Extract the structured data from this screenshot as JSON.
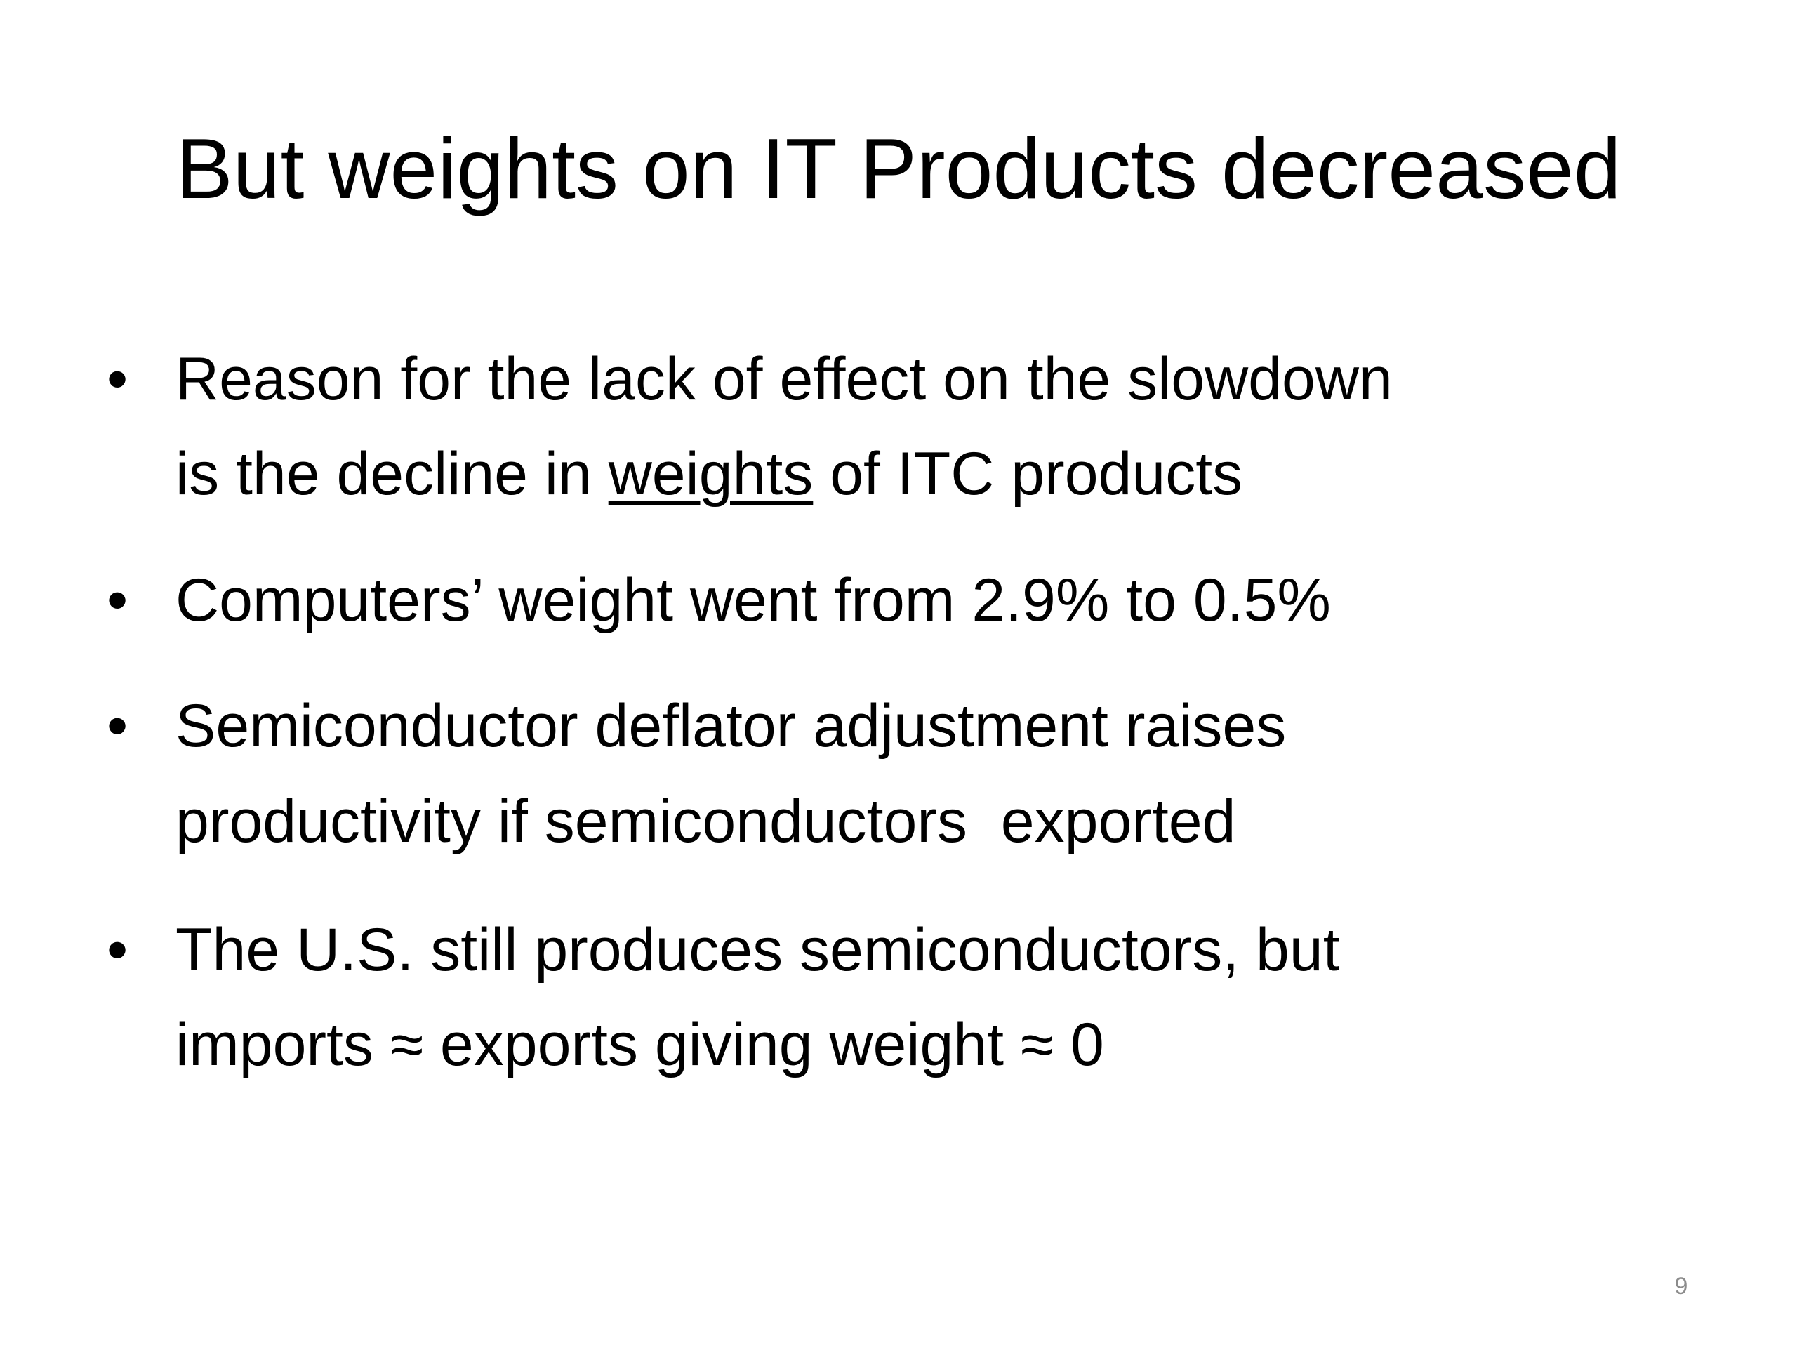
{
  "slide": {
    "title": "But weights on IT Products decreased",
    "bullets": [
      {
        "lines": [
          "Reason for the lack of effect on the slowdown",
          {
            "before": "is the decline in ",
            "underlined": "weights",
            "after": " of ITC products"
          }
        ]
      },
      {
        "lines": [
          "Computers’ weight went from 2.9% to 0.5%"
        ]
      },
      {
        "lines": [
          "Semiconductor deflator adjustment raises",
          "productivity if semiconductors  exported"
        ]
      },
      {
        "lines": [
          "The U.S. still produces semiconductors, but",
          "imports ≈ exports giving weight ≈ 0"
        ]
      }
    ],
    "page_number": "9"
  }
}
